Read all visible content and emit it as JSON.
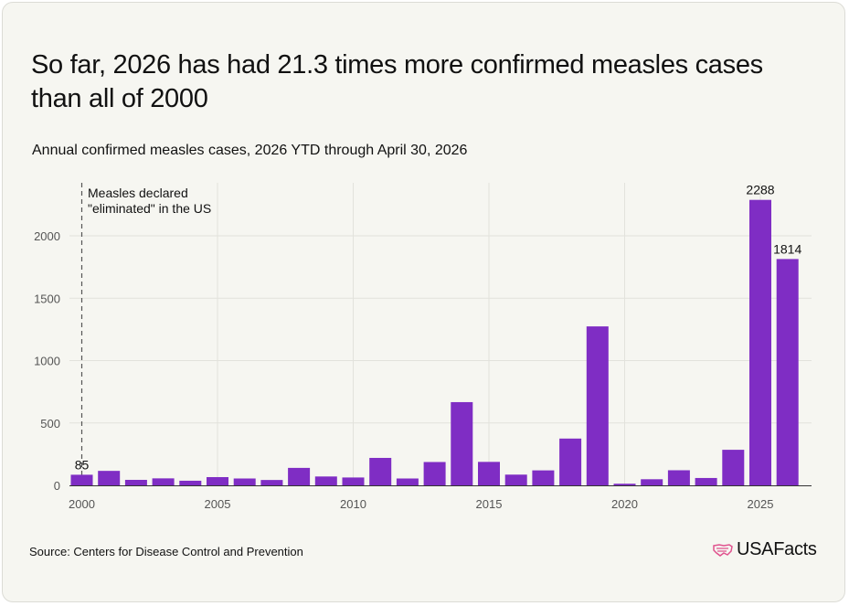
{
  "title": "So far, 2026 has had 21.3 times more confirmed measles cases than all of 2000",
  "subtitle": "Annual confirmed measles cases, 2026 YTD through April 30, 2026",
  "source": "Source: Centers for Disease Control and Prevention",
  "logo": {
    "name": "USAFacts",
    "icon": "us-flag-map-icon"
  },
  "colors": {
    "bar": "#7f2dc4",
    "grid": "#e2e2dc",
    "axis": "#333333",
    "background": "#f6f6f1",
    "logo_accent": "#e0528e"
  },
  "chart_data": {
    "type": "bar",
    "x": [
      2000,
      2001,
      2002,
      2003,
      2004,
      2005,
      2006,
      2007,
      2008,
      2009,
      2010,
      2011,
      2012,
      2013,
      2014,
      2015,
      2016,
      2017,
      2018,
      2019,
      2020,
      2021,
      2022,
      2023,
      2024,
      2025,
      2026
    ],
    "values": [
      85,
      116,
      44,
      56,
      37,
      66,
      55,
      43,
      140,
      71,
      63,
      220,
      55,
      187,
      667,
      188,
      86,
      120,
      375,
      1274,
      13,
      49,
      121,
      59,
      285,
      2288,
      1814
    ],
    "xticks": [
      "2000",
      "2005",
      "2010",
      "2015",
      "2020",
      "2025"
    ],
    "yticks": [
      "0",
      "500",
      "1000",
      "1500",
      "2000"
    ],
    "ylim": [
      0,
      2300
    ],
    "data_labels": [
      {
        "x": 2000,
        "label": "85"
      },
      {
        "x": 2025,
        "label": "2288"
      },
      {
        "x": 2026,
        "label": "1814"
      }
    ],
    "annotation": {
      "x": 2000,
      "text": "Measles declared \"eliminated\" in the US"
    },
    "grid": true
  }
}
